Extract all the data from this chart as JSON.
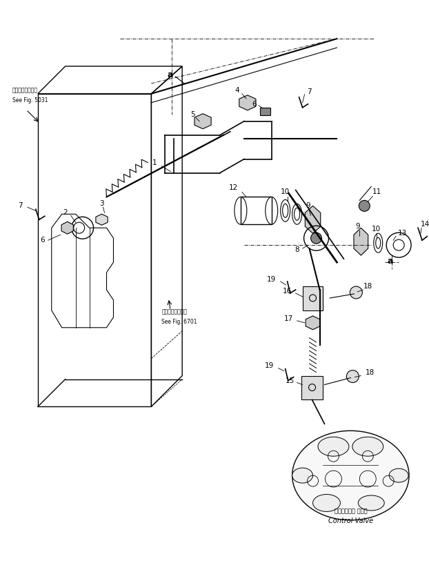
{
  "bg_color": "#ffffff",
  "line_color": "#000000",
  "figsize": [
    6.22,
    8.16
  ],
  "dpi": 100,
  "annotations": {
    "see_fig_5031_jp": "第５０３１図参照",
    "see_fig_5031_en": "See Fig. 5031",
    "see_fig_6701_jp": "第６７０１図参照",
    "see_fig_6701_en": "See Fig. 6701",
    "control_valve_jp": "コントロール バルブ",
    "control_valve_en": "Control Valve"
  }
}
